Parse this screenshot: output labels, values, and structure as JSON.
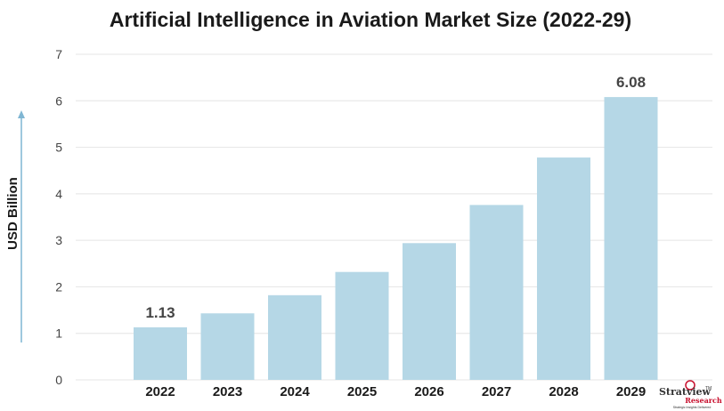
{
  "chart_data": {
    "type": "bar",
    "title": "Artificial Intelligence in Aviation Market Size (2022-29)",
    "xlabel": "",
    "ylabel": "USD Billion",
    "categories": [
      "2022",
      "2023",
      "2024",
      "2025",
      "2026",
      "2027",
      "2028",
      "2029"
    ],
    "values": [
      1.13,
      1.43,
      1.82,
      2.32,
      2.94,
      3.76,
      4.78,
      6.08
    ],
    "data_labels": {
      "0": "1.13",
      "7": "6.08"
    },
    "ylim": [
      0,
      7
    ],
    "yticks": [
      0,
      1,
      2,
      3,
      4,
      5,
      6,
      7
    ],
    "grid": true,
    "bar_color": "#b5d7e6",
    "axis_arrow_color": "#7fb6d3"
  },
  "branding": {
    "logo_name": "Stratview",
    "logo_sub": "Research",
    "logo_tag": "Strategic Insights Delivered",
    "tm": "TM",
    "logo_red": "#c8102e",
    "logo_dark": "#333333"
  }
}
